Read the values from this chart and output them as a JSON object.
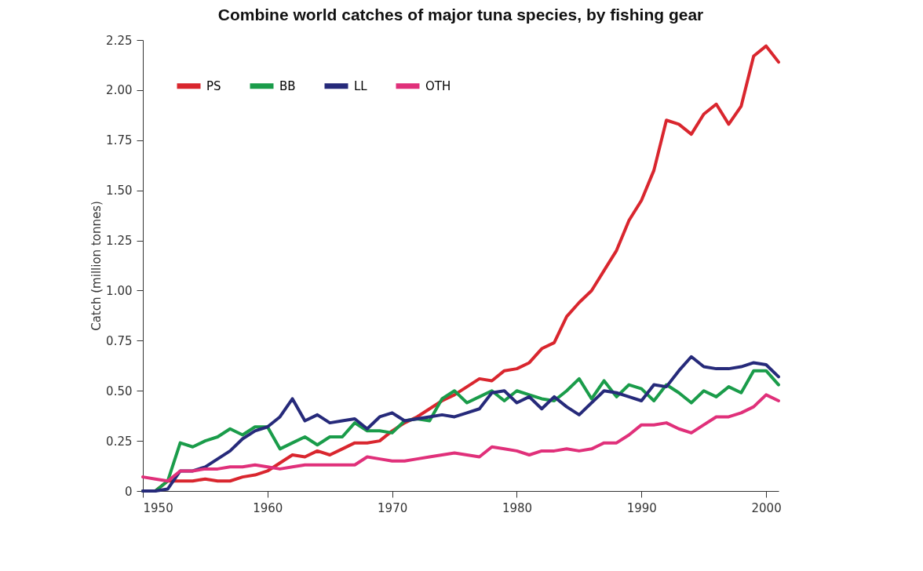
{
  "chart_data": {
    "type": "line",
    "title": "Combine world catches of major tuna species, by fishing gear",
    "ylabel": "Catch (million tonnes)",
    "x": [
      1950,
      1951,
      1952,
      1953,
      1954,
      1955,
      1956,
      1957,
      1958,
      1959,
      1960,
      1961,
      1962,
      1963,
      1964,
      1965,
      1966,
      1967,
      1968,
      1969,
      1970,
      1971,
      1972,
      1973,
      1974,
      1975,
      1976,
      1977,
      1978,
      1979,
      1980,
      1981,
      1982,
      1983,
      1984,
      1985,
      1986,
      1987,
      1988,
      1989,
      1990,
      1991,
      1992,
      1993,
      1994,
      1995,
      1996,
      1997,
      1998,
      1999,
      2000,
      2001
    ],
    "series": [
      {
        "name": "PS",
        "color": "#d9262e",
        "values": [
          0.0,
          0.0,
          0.05,
          0.05,
          0.05,
          0.06,
          0.05,
          0.05,
          0.07,
          0.08,
          0.1,
          0.14,
          0.18,
          0.17,
          0.2,
          0.18,
          0.21,
          0.24,
          0.24,
          0.25,
          0.3,
          0.34,
          0.37,
          0.41,
          0.45,
          0.48,
          0.52,
          0.56,
          0.55,
          0.6,
          0.61,
          0.64,
          0.71,
          0.74,
          0.87,
          0.94,
          1.0,
          1.1,
          1.2,
          1.35,
          1.45,
          1.6,
          1.85,
          1.83,
          1.78,
          1.88,
          1.93,
          1.83,
          1.92,
          2.17,
          2.22,
          2.14
        ]
      },
      {
        "name": "BB",
        "color": "#1a9c4a",
        "values": [
          0.0,
          0.0,
          0.05,
          0.24,
          0.22,
          0.25,
          0.27,
          0.31,
          0.28,
          0.32,
          0.32,
          0.21,
          0.24,
          0.27,
          0.23,
          0.27,
          0.27,
          0.34,
          0.3,
          0.3,
          0.29,
          0.35,
          0.36,
          0.35,
          0.46,
          0.5,
          0.44,
          0.47,
          0.5,
          0.45,
          0.5,
          0.48,
          0.46,
          0.45,
          0.5,
          0.56,
          0.46,
          0.55,
          0.47,
          0.53,
          0.51,
          0.45,
          0.53,
          0.49,
          0.44,
          0.5,
          0.47,
          0.52,
          0.49,
          0.6,
          0.6,
          0.53
        ]
      },
      {
        "name": "LL",
        "color": "#262a7a",
        "values": [
          0.0,
          0.0,
          0.01,
          0.1,
          0.1,
          0.12,
          0.16,
          0.2,
          0.26,
          0.3,
          0.32,
          0.37,
          0.46,
          0.35,
          0.38,
          0.34,
          0.35,
          0.36,
          0.31,
          0.37,
          0.39,
          0.35,
          0.36,
          0.37,
          0.38,
          0.37,
          0.39,
          0.41,
          0.49,
          0.5,
          0.44,
          0.47,
          0.41,
          0.47,
          0.42,
          0.38,
          0.44,
          0.5,
          0.49,
          0.47,
          0.45,
          0.53,
          0.52,
          0.6,
          0.67,
          0.62,
          0.61,
          0.61,
          0.62,
          0.64,
          0.63,
          0.57
        ]
      },
      {
        "name": "OTH",
        "color": "#e0307a",
        "values": [
          0.07,
          0.06,
          0.05,
          0.1,
          0.1,
          0.11,
          0.11,
          0.12,
          0.12,
          0.13,
          0.12,
          0.11,
          0.12,
          0.13,
          0.13,
          0.13,
          0.13,
          0.13,
          0.17,
          0.16,
          0.15,
          0.15,
          0.16,
          0.17,
          0.18,
          0.19,
          0.18,
          0.17,
          0.22,
          0.21,
          0.2,
          0.18,
          0.2,
          0.2,
          0.21,
          0.2,
          0.21,
          0.24,
          0.24,
          0.28,
          0.33,
          0.33,
          0.34,
          0.31,
          0.29,
          0.33,
          0.37,
          0.37,
          0.39,
          0.42,
          0.48,
          0.45
        ]
      }
    ],
    "xlim": [
      1950,
      2001
    ],
    "xticks": [
      1950,
      1960,
      1970,
      1980,
      1990,
      2000
    ],
    "ylim": [
      0,
      2.25
    ],
    "yticks": [
      0,
      0.25,
      {
        "value": 0.5,
        "label": "0.50"
      },
      0.75,
      {
        "value": 1,
        "label": "1.00"
      },
      1.25,
      {
        "value": 1.5,
        "label": "1.50"
      },
      1.75,
      {
        "value": 2,
        "label": "2.00"
      },
      2.25
    ],
    "grid": false,
    "legend": "top left",
    "marker": "none",
    "line_style": "solid"
  }
}
